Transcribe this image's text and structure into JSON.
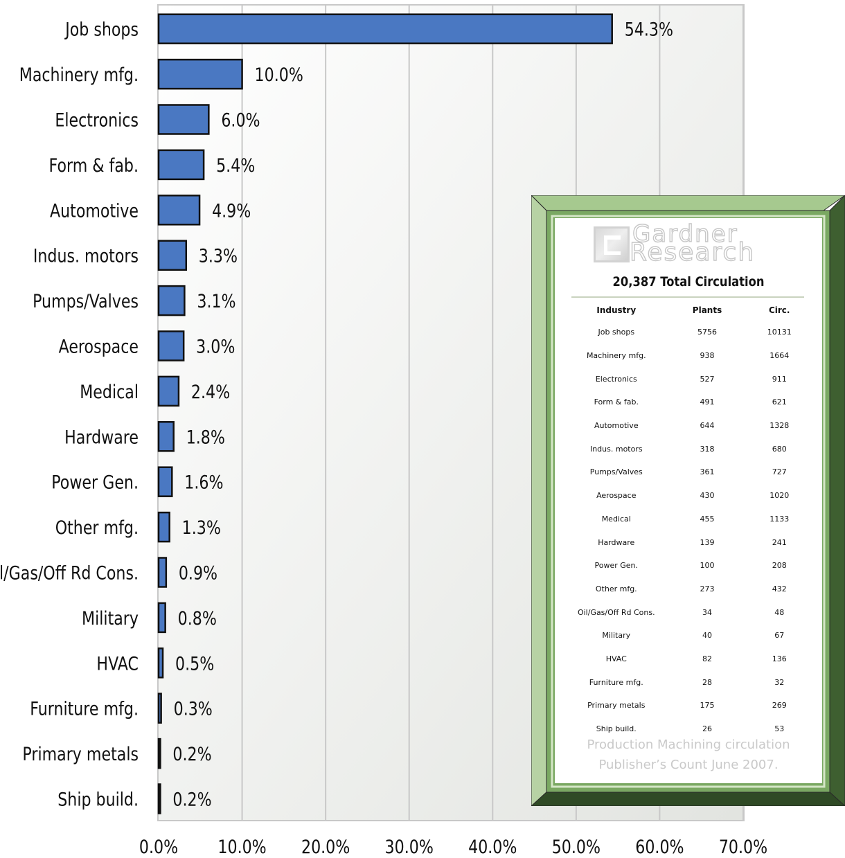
{
  "chart_data": {
    "type": "bar",
    "orientation": "horizontal",
    "categories": [
      "Job shops",
      "Machinery mfg.",
      "Electronics",
      "Form & fab.",
      "Automotive",
      "Indus. motors",
      "Pumps/Valves",
      "Aerospace",
      "Medical",
      "Hardware",
      "Power Gen.",
      "Other mfg.",
      "Oil/Gas/Off Rd Cons.",
      "Military",
      "HVAC",
      "Furniture mfg.",
      "Primary metals",
      "Ship build."
    ],
    "values": [
      54.3,
      10.0,
      6.0,
      5.4,
      4.9,
      3.3,
      3.1,
      3.0,
      2.4,
      1.8,
      1.6,
      1.3,
      0.9,
      0.8,
      0.5,
      0.3,
      0.2,
      0.2
    ],
    "value_labels": [
      "54.3%",
      "10.0%",
      "6.0%",
      "5.4%",
      "4.9%",
      "3.3%",
      "3.1%",
      "3.0%",
      "2.4%",
      "1.8%",
      "1.6%",
      "1.3%",
      "0.9%",
      "0.8%",
      "0.5%",
      "0.3%",
      "0.2%",
      "0.2%"
    ],
    "x_ticks": [
      "0.0%",
      "10.0%",
      "20.0%",
      "30.0%",
      "40.0%",
      "50.0%",
      "60.0%",
      "70.0%"
    ],
    "xlim": [
      0,
      70
    ],
    "grid": true,
    "title": "",
    "xlabel": "",
    "ylabel": "",
    "bar_color": "#4a78c2",
    "bar_edge_color": "#111111"
  },
  "inset": {
    "logo_line1": "Gardner",
    "logo_line2": "Research",
    "total_circulation": "20,387 Total Circulation",
    "table_headers": [
      "Industry",
      "Plants",
      "Circ."
    ],
    "rows": [
      [
        "Job shops",
        "5756",
        "10131"
      ],
      [
        "Machinery mfg.",
        "938",
        "1664"
      ],
      [
        "Electronics",
        "527",
        "911"
      ],
      [
        "Form & fab.",
        "491",
        "621"
      ],
      [
        "Automotive",
        "644",
        "1328"
      ],
      [
        "Indus. motors",
        "318",
        "680"
      ],
      [
        "Pumps/Valves",
        "361",
        "727"
      ],
      [
        "Aerospace",
        "430",
        "1020"
      ],
      [
        "Medical",
        "455",
        "1133"
      ],
      [
        "Hardware",
        "139",
        "241"
      ],
      [
        "Power Gen.",
        "100",
        "208"
      ],
      [
        "Other mfg.",
        "273",
        "432"
      ],
      [
        "Oil/Gas/Off Rd Cons.",
        "34",
        "48"
      ],
      [
        "Military",
        "40",
        "67"
      ],
      [
        "HVAC",
        "82",
        "136"
      ],
      [
        "Furniture mfg.",
        "28",
        "32"
      ],
      [
        "Primary metals",
        "175",
        "269"
      ],
      [
        "Ship build.",
        "26",
        "53"
      ]
    ],
    "note_line1": "Production Machining circulation",
    "note_line2": "Publisher’s Count June 2007.",
    "frame_color": "#5f8f4a",
    "frame_light": "#a6c98f",
    "frame_dark": "#3e5f30"
  }
}
